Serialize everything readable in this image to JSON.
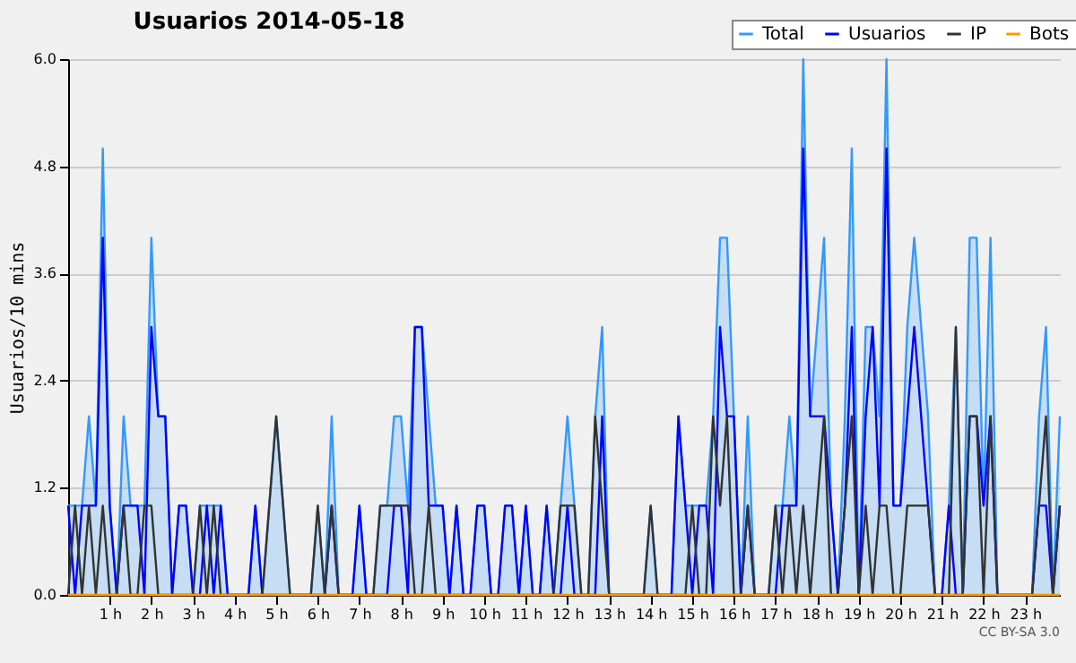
{
  "chart_data": {
    "type": "line",
    "title": "Usuarios  2014-05-18",
    "ylabel": "Usuarios/10 mins",
    "x": [
      "2014-05-18T00:00",
      "2014-05-18T00:10",
      "2014-05-18T00:20",
      "2014-05-18T00:30",
      "2014-05-18T00:40",
      "2014-05-18T00:50",
      "2014-05-18T01:00",
      "2014-05-18T01:10",
      "2014-05-18T01:20",
      "2014-05-18T01:30",
      "2014-05-18T01:40",
      "2014-05-18T01:50",
      "2014-05-18T02:00",
      "2014-05-18T02:10",
      "2014-05-18T02:20",
      "2014-05-18T02:30",
      "2014-05-18T02:40",
      "2014-05-18T02:50",
      "2014-05-18T03:00",
      "2014-05-18T03:10",
      "2014-05-18T03:20",
      "2014-05-18T03:30",
      "2014-05-18T03:40",
      "2014-05-18T03:50",
      "2014-05-18T04:00",
      "2014-05-18T04:10",
      "2014-05-18T04:20",
      "2014-05-18T04:30",
      "2014-05-18T04:40",
      "2014-05-18T04:50",
      "2014-05-18T05:00",
      "2014-05-18T05:10",
      "2014-05-18T05:20",
      "2014-05-18T05:30",
      "2014-05-18T05:40",
      "2014-05-18T05:50",
      "2014-05-18T06:00",
      "2014-05-18T06:10",
      "2014-05-18T06:20",
      "2014-05-18T06:30",
      "2014-05-18T06:40",
      "2014-05-18T06:50",
      "2014-05-18T07:00",
      "2014-05-18T07:10",
      "2014-05-18T07:20",
      "2014-05-18T07:30",
      "2014-05-18T07:40",
      "2014-05-18T07:50",
      "2014-05-18T08:00",
      "2014-05-18T08:10",
      "2014-05-18T08:20",
      "2014-05-18T08:30",
      "2014-05-18T08:40",
      "2014-05-18T08:50",
      "2014-05-18T09:00",
      "2014-05-18T09:10",
      "2014-05-18T09:20",
      "2014-05-18T09:30",
      "2014-05-18T09:40",
      "2014-05-18T09:50",
      "2014-05-18T10:00",
      "2014-05-18T10:10",
      "2014-05-18T10:20",
      "2014-05-18T10:30",
      "2014-05-18T10:40",
      "2014-05-18T10:50",
      "2014-05-18T11:00",
      "2014-05-18T11:10",
      "2014-05-18T11:20",
      "2014-05-18T11:30",
      "2014-05-18T11:40",
      "2014-05-18T11:50",
      "2014-05-18T12:00",
      "2014-05-18T12:10",
      "2014-05-18T12:20",
      "2014-05-18T12:30",
      "2014-05-18T12:40",
      "2014-05-18T12:50",
      "2014-05-18T13:00",
      "2014-05-18T13:10",
      "2014-05-18T13:20",
      "2014-05-18T13:30",
      "2014-05-18T13:40",
      "2014-05-18T13:50",
      "2014-05-18T14:00",
      "2014-05-18T14:10",
      "2014-05-18T14:20",
      "2014-05-18T14:30",
      "2014-05-18T14:40",
      "2014-05-18T14:50",
      "2014-05-18T15:00",
      "2014-05-18T15:10",
      "2014-05-18T15:20",
      "2014-05-18T15:30",
      "2014-05-18T15:40",
      "2014-05-18T15:50",
      "2014-05-18T16:00",
      "2014-05-18T16:10",
      "2014-05-18T16:20",
      "2014-05-18T16:30",
      "2014-05-18T16:40",
      "2014-05-18T16:50",
      "2014-05-18T17:00",
      "2014-05-18T17:10",
      "2014-05-18T17:20",
      "2014-05-18T17:30",
      "2014-05-18T17:40",
      "2014-05-18T17:50",
      "2014-05-18T18:00",
      "2014-05-18T18:10",
      "2014-05-18T18:20",
      "2014-05-18T18:30",
      "2014-05-18T18:40",
      "2014-05-18T18:50",
      "2014-05-18T19:00",
      "2014-05-18T19:10",
      "2014-05-18T19:20",
      "2014-05-18T19:30",
      "2014-05-18T19:40",
      "2014-05-18T19:50",
      "2014-05-18T20:00",
      "2014-05-18T20:10",
      "2014-05-18T20:20",
      "2014-05-18T20:30",
      "2014-05-18T20:40",
      "2014-05-18T20:50",
      "2014-05-18T21:00",
      "2014-05-18T21:10",
      "2014-05-18T21:20",
      "2014-05-18T21:30",
      "2014-05-18T21:40",
      "2014-05-18T21:50",
      "2014-05-18T22:00",
      "2014-05-18T22:10",
      "2014-05-18T22:20",
      "2014-05-18T22:30",
      "2014-05-18T22:40",
      "2014-05-18T22:50",
      "2014-05-18T23:00",
      "2014-05-18T23:10",
      "2014-05-18T23:20",
      "2014-05-18T23:30",
      "2014-05-18T23:40",
      "2014-05-18T23:50"
    ],
    "xlim": [
      "2014-05-18T00:00",
      "2014-05-18T23:50"
    ],
    "xticks": [
      {
        "value": "2014-05-18T01:00",
        "label": "1 h"
      },
      {
        "value": "2014-05-18T02:00",
        "label": "2 h"
      },
      {
        "value": "2014-05-18T03:00",
        "label": "3 h"
      },
      {
        "value": "2014-05-18T04:00",
        "label": "4 h"
      },
      {
        "value": "2014-05-18T05:00",
        "label": "5 h"
      },
      {
        "value": "2014-05-18T06:00",
        "label": "6 h"
      },
      {
        "value": "2014-05-18T07:00",
        "label": "7 h"
      },
      {
        "value": "2014-05-18T08:00",
        "label": "8 h"
      },
      {
        "value": "2014-05-18T09:00",
        "label": "9 h"
      },
      {
        "value": "2014-05-18T10:00",
        "label": "10 h"
      },
      {
        "value": "2014-05-18T11:00",
        "label": "11 h"
      },
      {
        "value": "2014-05-18T12:00",
        "label": "12 h"
      },
      {
        "value": "2014-05-18T13:00",
        "label": "13 h"
      },
      {
        "value": "2014-05-18T14:00",
        "label": "14 h"
      },
      {
        "value": "2014-05-18T15:00",
        "label": "15 h"
      },
      {
        "value": "2014-05-18T16:00",
        "label": "16 h"
      },
      {
        "value": "2014-05-18T17:00",
        "label": "17 h"
      },
      {
        "value": "2014-05-18T18:00",
        "label": "18 h"
      },
      {
        "value": "2014-05-18T19:00",
        "label": "19 h"
      },
      {
        "value": "2014-05-18T20:00",
        "label": "20 h"
      },
      {
        "value": "2014-05-18T21:00",
        "label": "21 h"
      },
      {
        "value": "2014-05-18T22:00",
        "label": "22 h"
      },
      {
        "value": "2014-05-18T23:00",
        "label": "23 h"
      }
    ],
    "ylim": [
      0,
      6
    ],
    "yticks": [
      {
        "value": 0,
        "label": "0.0"
      },
      {
        "value": 1.2,
        "label": "1.2"
      },
      {
        "value": 2.4,
        "label": "2.4"
      },
      {
        "value": 3.6,
        "label": "3.6"
      },
      {
        "value": 4.8,
        "label": "4.8"
      },
      {
        "value": 6,
        "label": "6.0"
      }
    ],
    "grid": "y",
    "legend": "top right",
    "marker": "none",
    "line_style": "solid",
    "annotations": [
      "CC BY-SA 3.0"
    ],
    "series": [
      {
        "name": "Total",
        "type": "area",
        "color": "#3399ff",
        "values": [
          1,
          1,
          1,
          2,
          1,
          5,
          1,
          0,
          2,
          1,
          1,
          1,
          4,
          2,
          2,
          0,
          1,
          1,
          0,
          1,
          1,
          1,
          1,
          0,
          0,
          0,
          0,
          1,
          0,
          1,
          2,
          1,
          0,
          0,
          0,
          0,
          1,
          0,
          2,
          0,
          0,
          0,
          1,
          0,
          0,
          1,
          1,
          2,
          2,
          1,
          3,
          3,
          2,
          1,
          1,
          0,
          1,
          0,
          0,
          1,
          1,
          0,
          0,
          1,
          1,
          0,
          1,
          0,
          0,
          1,
          0,
          1,
          2,
          1,
          0,
          0,
          2,
          3,
          0,
          0,
          0,
          0,
          0,
          0,
          1,
          0,
          0,
          0,
          2,
          1,
          1,
          1,
          1,
          2,
          4,
          4,
          2,
          0,
          2,
          0,
          0,
          0,
          1,
          1,
          2,
          1,
          6,
          2,
          3,
          4,
          1,
          0,
          2,
          5,
          0,
          3,
          3,
          2,
          6,
          1,
          1,
          3,
          4,
          3,
          2,
          0,
          0,
          1,
          3,
          0,
          4,
          4,
          1,
          4,
          0,
          0,
          0,
          0,
          0,
          0,
          2,
          3,
          0,
          2
        ]
      },
      {
        "name": "Usuarios",
        "color": "#0000ff",
        "values": [
          1,
          0,
          1,
          1,
          1,
          4,
          1,
          0,
          1,
          1,
          1,
          0,
          3,
          2,
          2,
          0,
          1,
          1,
          0,
          0,
          1,
          0,
          1,
          0,
          0,
          0,
          0,
          1,
          0,
          0,
          0,
          0,
          0,
          0,
          0,
          0,
          0,
          0,
          1,
          0,
          0,
          0,
          1,
          0,
          0,
          0,
          0,
          1,
          1,
          0,
          3,
          3,
          1,
          1,
          1,
          0,
          1,
          0,
          0,
          1,
          1,
          0,
          0,
          1,
          1,
          0,
          1,
          0,
          0,
          1,
          0,
          0,
          1,
          0,
          0,
          0,
          0,
          2,
          0,
          0,
          0,
          0,
          0,
          0,
          0,
          0,
          0,
          0,
          2,
          1,
          0,
          1,
          1,
          0,
          3,
          2,
          2,
          0,
          1,
          0,
          0,
          0,
          0,
          1,
          1,
          1,
          5,
          2,
          2,
          2,
          1,
          0,
          1,
          3,
          0,
          2,
          3,
          1,
          5,
          1,
          1,
          2,
          3,
          2,
          1,
          0,
          0,
          1,
          0,
          0,
          2,
          2,
          1,
          2,
          0,
          0,
          0,
          0,
          0,
          0,
          1,
          1,
          0,
          1
        ]
      },
      {
        "name": "IP",
        "color": "#333333",
        "values": [
          0,
          1,
          0,
          1,
          0,
          1,
          0,
          0,
          1,
          0,
          0,
          1,
          1,
          0,
          0,
          0,
          0,
          0,
          0,
          1,
          0,
          1,
          0,
          0,
          0,
          0,
          0,
          0,
          0,
          1,
          2,
          1,
          0,
          0,
          0,
          0,
          1,
          0,
          1,
          0,
          0,
          0,
          0,
          0,
          0,
          1,
          1,
          1,
          1,
          1,
          0,
          0,
          1,
          0,
          0,
          0,
          0,
          0,
          0,
          0,
          0,
          0,
          0,
          0,
          0,
          0,
          0,
          0,
          0,
          0,
          0,
          1,
          1,
          1,
          0,
          0,
          2,
          1,
          0,
          0,
          0,
          0,
          0,
          0,
          1,
          0,
          0,
          0,
          0,
          0,
          1,
          0,
          0,
          2,
          1,
          2,
          0,
          0,
          1,
          0,
          0,
          0,
          1,
          0,
          1,
          0,
          1,
          0,
          1,
          2,
          0,
          0,
          1,
          2,
          0,
          1,
          0,
          1,
          1,
          0,
          0,
          1,
          1,
          1,
          1,
          0,
          0,
          0,
          3,
          0,
          2,
          2,
          0,
          2,
          0,
          0,
          0,
          0,
          0,
          0,
          1,
          2,
          0,
          1
        ]
      },
      {
        "name": "Bots",
        "color": "#ff9900",
        "values": [
          0,
          0,
          0,
          0,
          0,
          0,
          0,
          0,
          0,
          0,
          0,
          0,
          0,
          0,
          0,
          0,
          0,
          0,
          0,
          0,
          0,
          0,
          0,
          0,
          0,
          0,
          0,
          0,
          0,
          0,
          0,
          0,
          0,
          0,
          0,
          0,
          0,
          0,
          0,
          0,
          0,
          0,
          0,
          0,
          0,
          0,
          0,
          0,
          0,
          0,
          0,
          0,
          0,
          0,
          0,
          0,
          0,
          0,
          0,
          0,
          0,
          0,
          0,
          0,
          0,
          0,
          0,
          0,
          0,
          0,
          0,
          0,
          0,
          0,
          0,
          0,
          0,
          0,
          0,
          0,
          0,
          0,
          0,
          0,
          0,
          0,
          0,
          0,
          0,
          0,
          0,
          0,
          0,
          0,
          0,
          0,
          0,
          0,
          0,
          0,
          0,
          0,
          0,
          0,
          0,
          0,
          0,
          0,
          0,
          0,
          0,
          0,
          0,
          0,
          0,
          0,
          0,
          0,
          0,
          0,
          0,
          0,
          0,
          0,
          0,
          0,
          0,
          0,
          0,
          0,
          0,
          0,
          0,
          0,
          0,
          0,
          0,
          0,
          0,
          0,
          0,
          0,
          0,
          0
        ]
      }
    ]
  }
}
